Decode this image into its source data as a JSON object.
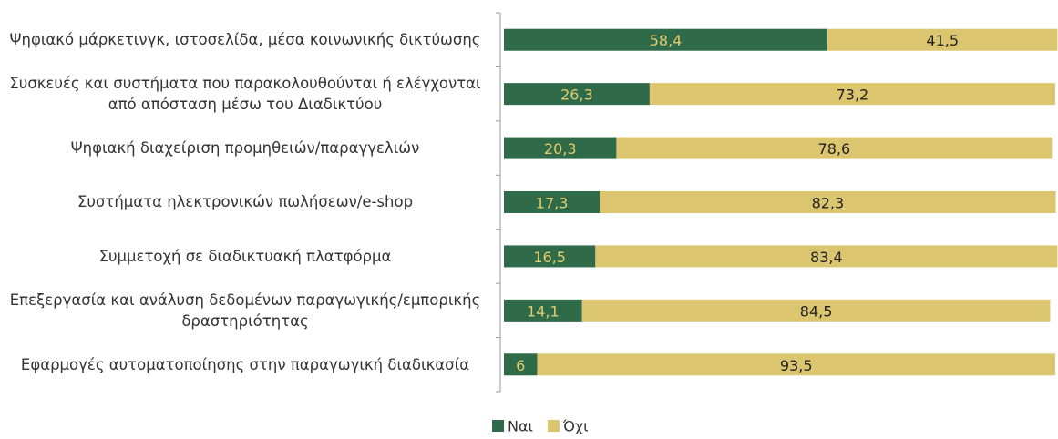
{
  "chart_data": {
    "type": "stacked_barh",
    "categories": [
      "Ψηφιακό μάρκετινγκ, ιστοσελίδα, μέσα κοινωνικής δικτύωσης",
      "Συσκευές και συστήματα που παρακολουθούνται ή ελέγχονται από απόσταση μέσω του Διαδικτύου",
      "Ψηφιακή διαχείριση προμηθειών/παραγγελιών",
      "Συστήματα ηλεκτρονικών πωλήσεων/e-shop",
      "Συμμετοχή σε διαδικτυακή πλατφόρμα",
      "Επεξεργασία και ανάλυση δεδομένων παραγωγικής/εμπορικής δραστηριότητας",
      "Εφαρμογές αυτοματοποίησης στην παραγωγική διαδικασία"
    ],
    "series": [
      {
        "name": "Ναι",
        "color": "#2f6b48",
        "label_color": "#e1cb6f",
        "values": [
          58.4,
          26.3,
          20.3,
          17.3,
          16.5,
          14.1,
          6
        ],
        "value_labels": [
          "58,4",
          "26,3",
          "20,3",
          "17,3",
          "16,5",
          "14,1",
          "6"
        ]
      },
      {
        "name": "Όχι",
        "color": "#dcc56f",
        "label_color": "#222222",
        "values": [
          41.5,
          73.2,
          78.6,
          82.3,
          83.4,
          84.5,
          93.5
        ],
        "value_labels": [
          "41,5",
          "73,2",
          "78,6",
          "82,3",
          "83,4",
          "84,5",
          "93,5"
        ]
      }
    ],
    "xlim": [
      0,
      100
    ],
    "legend": "bottom"
  }
}
